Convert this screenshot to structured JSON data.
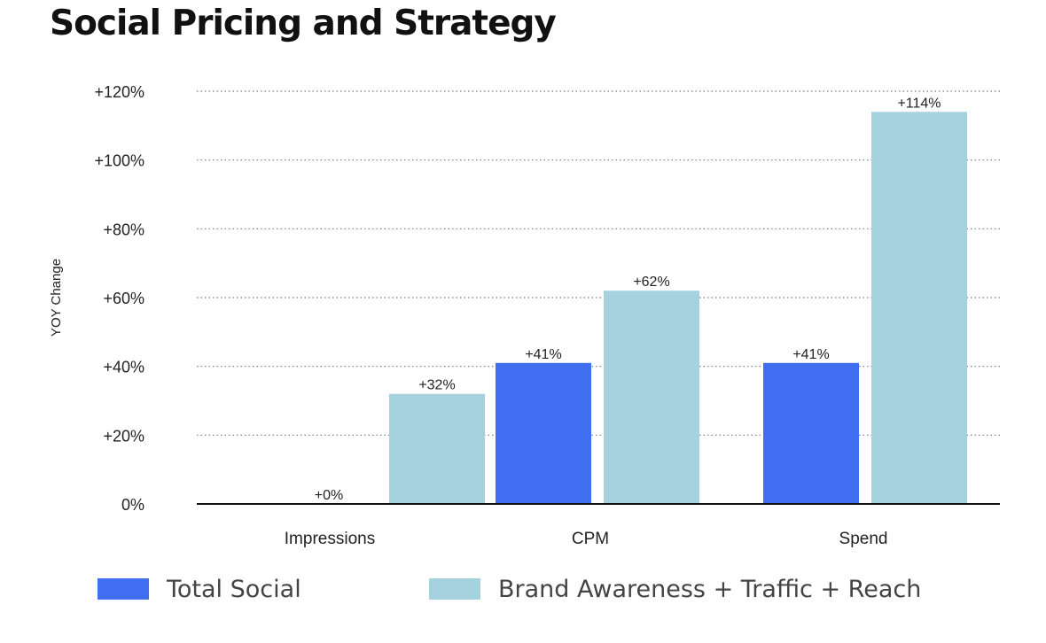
{
  "chart_data": {
    "type": "bar",
    "title": "Social Pricing and Strategy",
    "ylabel": "YOY Change",
    "xlabel": "",
    "ylim": [
      0,
      120
    ],
    "yticks": [
      0,
      20,
      40,
      60,
      80,
      100,
      120
    ],
    "ytick_labels": [
      "0%",
      "+20%",
      "+40%",
      "+60%",
      "+80%",
      "+100%",
      "+120%"
    ],
    "categories": [
      "Impressions",
      "CPM",
      "Spend"
    ],
    "series": [
      {
        "name": "Total Social",
        "color": "#3f6ff0",
        "values": [
          0,
          41,
          41
        ],
        "labels": [
          "+0%",
          "+41%",
          "+41%"
        ]
      },
      {
        "name": "Brand Awareness + Traffic + Reach",
        "color": "#a6d1df",
        "values": [
          32,
          62,
          114
        ],
        "labels": [
          "+32%",
          "+62%",
          "+114%"
        ]
      }
    ],
    "grid": true,
    "grid_style": "dotted",
    "legend_position": "bottom"
  }
}
